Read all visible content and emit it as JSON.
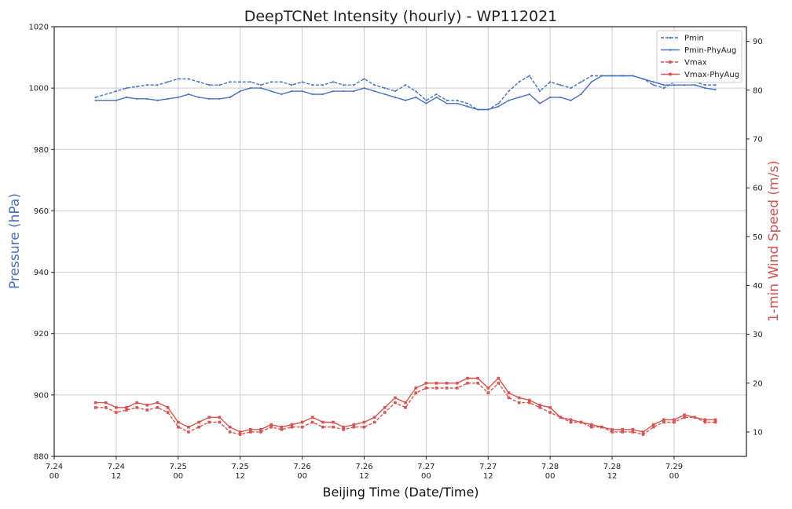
{
  "chart_data": {
    "type": "line",
    "title": "DeepTCNet Intensity (hourly) - WP112021",
    "xlabel": "Beijing Time (Date/Time)",
    "ylabel_left": "Pressure (hPa)",
    "ylabel_right": "1-min Wind Speed (m/s)",
    "x_unit": "hours since first x tick (7.24 00)",
    "xlim": [
      0,
      134
    ],
    "ylim_left": [
      880,
      1020
    ],
    "ylim_right": [
      5,
      93
    ],
    "x_ticks": [
      {
        "x": 0,
        "label1": "7.24",
        "label2": "00"
      },
      {
        "x": 12,
        "label1": "7.24",
        "label2": "12"
      },
      {
        "x": 24,
        "label1": "7.25",
        "label2": "00"
      },
      {
        "x": 36,
        "label1": "7.25",
        "label2": "12"
      },
      {
        "x": 48,
        "label1": "7.26",
        "label2": "00"
      },
      {
        "x": 60,
        "label1": "7.26",
        "label2": "12"
      },
      {
        "x": 72,
        "label1": "7.27",
        "label2": "00"
      },
      {
        "x": 84,
        "label1": "7.27",
        "label2": "12"
      },
      {
        "x": 96,
        "label1": "7.28",
        "label2": "00"
      },
      {
        "x": 108,
        "label1": "7.28",
        "label2": "12"
      },
      {
        "x": 120,
        "label1": "7.29",
        "label2": "00"
      }
    ],
    "y_ticks_left": [
      880,
      900,
      920,
      940,
      960,
      980,
      1000,
      1020
    ],
    "y_ticks_right": [
      10,
      20,
      30,
      40,
      50,
      60,
      70,
      80,
      90
    ],
    "grid": true,
    "legend_position": "top-right",
    "colors": {
      "pressure": "#4472c4",
      "wind": "#d9534f"
    },
    "series": [
      {
        "name": "Pmin",
        "axis": "left",
        "style": "dashed",
        "color": "#4472c4",
        "x": [
          8,
          12,
          14,
          16,
          18,
          20,
          22,
          24,
          26,
          28,
          30,
          32,
          34,
          36,
          38,
          40,
          42,
          44,
          46,
          48,
          50,
          52,
          54,
          56,
          58,
          60,
          62,
          64,
          66,
          68,
          70,
          72,
          74,
          76,
          78,
          80,
          82,
          84,
          86,
          88,
          90,
          92,
          94,
          96,
          98,
          100,
          102,
          104,
          106,
          108,
          110,
          112,
          114,
          116,
          118,
          120,
          122,
          124,
          126,
          128
        ],
        "values": [
          997,
          999,
          1000,
          1000.5,
          1001,
          1001,
          1002,
          1003,
          1003,
          1002,
          1001,
          1001,
          1002,
          1002,
          1002,
          1001,
          1002,
          1002,
          1001,
          1002,
          1001,
          1001,
          1002,
          1001,
          1001,
          1003,
          1001,
          1000,
          999,
          1001,
          999,
          996,
          998,
          996,
          996,
          995,
          993,
          993,
          995,
          999,
          1002,
          1004,
          999,
          1002,
          1001,
          1000,
          1002,
          1004,
          1004,
          1004,
          1004,
          1004,
          1003,
          1001,
          1000,
          1002,
          1002,
          1002,
          1001,
          1001
        ]
      },
      {
        "name": "Pmin-PhyAug",
        "axis": "left",
        "style": "solid",
        "color": "#4472c4",
        "x": [
          8,
          12,
          14,
          16,
          18,
          20,
          22,
          24,
          26,
          28,
          30,
          32,
          34,
          36,
          38,
          40,
          42,
          44,
          46,
          48,
          50,
          52,
          54,
          56,
          58,
          60,
          62,
          64,
          66,
          68,
          70,
          72,
          74,
          76,
          78,
          80,
          82,
          84,
          86,
          88,
          90,
          92,
          94,
          96,
          98,
          100,
          102,
          104,
          106,
          108,
          110,
          112,
          114,
          116,
          118,
          120,
          122,
          124,
          126,
          128
        ],
        "values": [
          996,
          996,
          997,
          996.5,
          996.5,
          996,
          996.5,
          997,
          998,
          997,
          996.5,
          996.5,
          997,
          999,
          1000,
          1000,
          999,
          998,
          999,
          999,
          998,
          998,
          999,
          999,
          999,
          1000,
          999,
          998,
          997,
          996,
          997,
          995,
          997,
          995,
          995,
          994,
          993,
          993,
          994,
          996,
          997,
          998,
          995,
          997,
          997,
          996,
          998,
          1002,
          1004,
          1004,
          1004,
          1004,
          1003,
          1002,
          1001,
          1001,
          1001,
          1001,
          1000,
          999.5
        ]
      },
      {
        "name": "Vmax",
        "axis": "right",
        "style": "dashed-marker",
        "color": "#d9534f",
        "x": [
          8,
          10,
          12,
          14,
          16,
          18,
          20,
          22,
          24,
          26,
          28,
          30,
          32,
          34,
          36,
          38,
          40,
          42,
          44,
          46,
          48,
          50,
          52,
          54,
          56,
          58,
          60,
          62,
          64,
          66,
          68,
          70,
          72,
          74,
          76,
          78,
          80,
          82,
          84,
          86,
          88,
          90,
          92,
          94,
          96,
          98,
          100,
          102,
          104,
          106,
          108,
          110,
          112,
          114,
          116,
          118,
          120,
          122,
          124,
          126,
          128
        ],
        "values": [
          15,
          15,
          14,
          14.5,
          15,
          14.5,
          15,
          14,
          11,
          10,
          11,
          12,
          12,
          10,
          9.5,
          10,
          10,
          11,
          10.5,
          11,
          11,
          12,
          11,
          11,
          10.5,
          11,
          11,
          12,
          14,
          16,
          15,
          18,
          19,
          19,
          19,
          19,
          20,
          20,
          18,
          20,
          17,
          16,
          16,
          15,
          14,
          13,
          12,
          12,
          11,
          11,
          10,
          10,
          10,
          9.5,
          11,
          12,
          12,
          13,
          13,
          12,
          12
        ]
      },
      {
        "name": "Vmax-PhyAug",
        "axis": "right",
        "style": "solid-marker",
        "color": "#d9534f",
        "x": [
          8,
          10,
          12,
          14,
          16,
          18,
          20,
          22,
          24,
          26,
          28,
          30,
          32,
          34,
          36,
          38,
          40,
          42,
          44,
          46,
          48,
          50,
          52,
          54,
          56,
          58,
          60,
          62,
          64,
          66,
          68,
          70,
          72,
          74,
          76,
          78,
          80,
          82,
          84,
          86,
          88,
          90,
          92,
          94,
          96,
          98,
          100,
          102,
          104,
          106,
          108,
          110,
          112,
          114,
          116,
          118,
          120,
          122,
          124,
          126,
          128
        ],
        "values": [
          16,
          16,
          15,
          15,
          16,
          15.5,
          16,
          15,
          12,
          11,
          12,
          13,
          13,
          11,
          10,
          10.5,
          10.5,
          11.5,
          11,
          11.5,
          12,
          13,
          12,
          12,
          11,
          11.5,
          12,
          13,
          15,
          17,
          16,
          19,
          20,
          20,
          20,
          20,
          21,
          21,
          19,
          21,
          18,
          17,
          16.5,
          15.5,
          15,
          13,
          12.5,
          12,
          11.5,
          11,
          10.5,
          10.5,
          10.5,
          10,
          11.5,
          12.5,
          12.5,
          13.5,
          13,
          12.5,
          12.5
        ]
      }
    ]
  }
}
